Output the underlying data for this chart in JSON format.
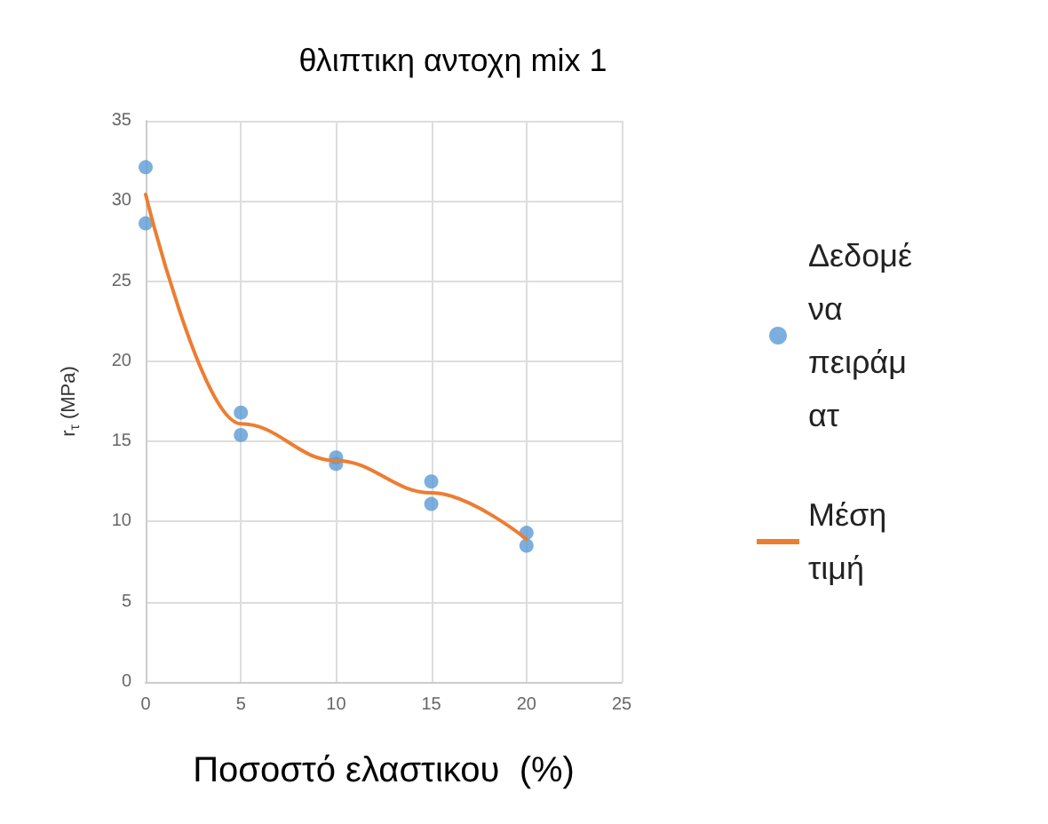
{
  "chart_data": {
    "type": "scatter",
    "title": "θλιπτικη αντοχη mix 1",
    "xlabel": "Ποσοστό ελαστικου  (%)",
    "ylabel": "r$_{τ}$ (MPa)",
    "series": [
      {
        "name": "Δεδομένα πειράματ",
        "color": "#5b9bd5",
        "x": [
          0,
          0,
          5,
          5,
          10,
          10,
          15,
          15,
          20,
          20
        ],
        "values": [
          32.1,
          28.6,
          16.8,
          15.4,
          14.0,
          13.6,
          12.5,
          11.1,
          9.3,
          8.5
        ],
        "marker": "circle"
      },
      {
        "name": "Μέση τιμή",
        "type": "line",
        "color": "#ed7d31",
        "x": [
          0,
          5,
          10,
          15,
          20
        ],
        "values": [
          30.4,
          16.1,
          13.8,
          11.8,
          8.9
        ],
        "marker": "none",
        "line_style": "solid"
      }
    ],
    "xlim": [
      0,
      25
    ],
    "xticks": [
      0,
      5,
      10,
      15,
      20,
      25
    ],
    "ylim": [
      0,
      35
    ],
    "yticks": [
      0,
      5,
      10,
      15,
      20,
      25,
      30,
      35
    ],
    "grid": true,
    "legend": "right"
  }
}
